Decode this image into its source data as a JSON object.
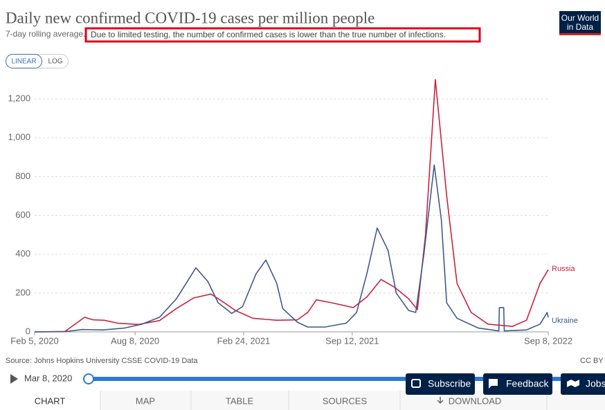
{
  "chart_data": {
    "type": "line",
    "title": "Daily new confirmed COVID-19 cases per million people",
    "subtitle": "7-day rolling average.",
    "note": "Due to limited testing, the number of confirmed cases is lower than the true number of infections.",
    "xlim": [
      "2020-02-05",
      "2022-09-08"
    ],
    "xticks": [
      {
        "value": "2020-02-05",
        "label": "Feb 5, 2020"
      },
      {
        "value": "2020-08-08",
        "label": "Aug 8, 2020"
      },
      {
        "value": "2021-02-24",
        "label": "Feb 24, 2021"
      },
      {
        "value": "2021-09-12",
        "label": "Sep 12, 2021"
      },
      {
        "value": "2022-09-08",
        "label": "Sep 8, 2022"
      }
    ],
    "ylim": [
      0,
      1300
    ],
    "yticks": [
      0,
      200,
      400,
      600,
      800,
      {
        "value": 1000,
        "label": "1,000"
      },
      {
        "value": 1200,
        "label": "1,200"
      }
    ],
    "grid": true,
    "series": [
      {
        "name": "Russia",
        "color": "#c8233f",
        "x": [
          "2020-02-05",
          "2020-04-01",
          "2020-05-07",
          "2020-05-23",
          "2020-06-12",
          "2020-07-07",
          "2020-08-14",
          "2020-09-22",
          "2020-10-23",
          "2020-11-24",
          "2020-12-26",
          "2021-01-14",
          "2021-02-09",
          "2021-03-13",
          "2021-04-26",
          "2021-06-03",
          "2021-06-22",
          "2021-07-08",
          "2021-08-05",
          "2021-09-14",
          "2021-10-09",
          "2021-11-04",
          "2021-11-29",
          "2021-12-25",
          "2022-01-10",
          "2022-01-25",
          "2022-02-12",
          "2022-03-05",
          "2022-03-24",
          "2022-04-19",
          "2022-05-20",
          "2022-07-04",
          "2022-07-30",
          "2022-08-24",
          "2022-09-08"
        ],
        "values": [
          0,
          2,
          75,
          62,
          60,
          45,
          38,
          58,
          120,
          175,
          195,
          160,
          110,
          70,
          60,
          62,
          100,
          165,
          150,
          125,
          180,
          270,
          230,
          170,
          115,
          500,
          1300,
          700,
          250,
          100,
          40,
          28,
          60,
          250,
          320
        ]
      },
      {
        "name": "Ukraine",
        "color": "#3f5a8a",
        "x": [
          "2020-02-05",
          "2020-04-01",
          "2020-05-03",
          "2020-06-10",
          "2020-07-20",
          "2020-08-21",
          "2020-09-22",
          "2020-10-23",
          "2020-11-28",
          "2020-12-20",
          "2021-01-08",
          "2021-02-02",
          "2021-02-22",
          "2021-03-19",
          "2021-04-06",
          "2021-04-26",
          "2021-05-07",
          "2021-06-03",
          "2021-06-22",
          "2021-07-24",
          "2021-09-01",
          "2021-09-20",
          "2021-10-09",
          "2021-10-28",
          "2021-11-17",
          "2021-12-02",
          "2021-12-25",
          "2022-01-07",
          "2022-01-22",
          "2022-02-10",
          "2022-02-23",
          "2022-03-05",
          "2022-03-24",
          "2022-05-02",
          "2022-06-09",
          "2022-06-10",
          "2022-06-18",
          "2022-06-19",
          "2022-07-30",
          "2022-08-24",
          "2022-09-06",
          "2022-09-08"
        ],
        "values": [
          0,
          1,
          12,
          10,
          20,
          40,
          75,
          170,
          330,
          260,
          150,
          95,
          130,
          300,
          370,
          250,
          120,
          50,
          25,
          25,
          45,
          100,
          300,
          535,
          420,
          200,
          110,
          100,
          400,
          860,
          580,
          150,
          70,
          20,
          5,
          125,
          125,
          5,
          10,
          40,
          100,
          75
        ]
      }
    ]
  },
  "ui": {
    "logo": [
      "Our World",
      "in Data"
    ],
    "scale_buttons": [
      "LINEAR",
      "LOG"
    ],
    "source": "Source: Johns Hopkins University CSSE COVID-19 Data",
    "license": "CC BY",
    "timeline_start": "Mar 8, 2020",
    "buttons": [
      "Subscribe",
      "Feedback",
      "Jobs"
    ],
    "tabs": [
      "CHART",
      "MAP",
      "TABLE",
      "SOURCES",
      "DOWNLOAD"
    ]
  }
}
